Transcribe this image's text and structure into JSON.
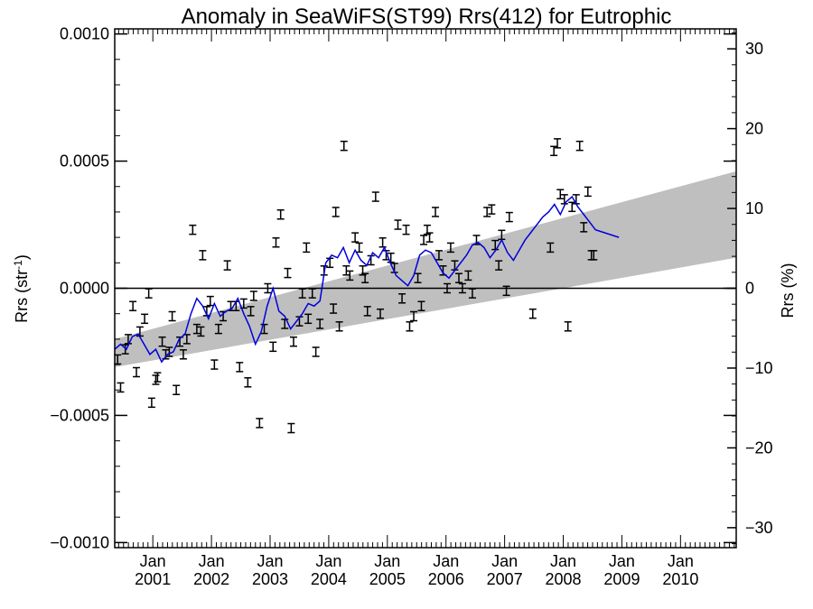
{
  "chart_data": {
    "type": "scatter",
    "title": "Anomaly in SeaWiFS(ST99) Rrs(412) for Eutrophic",
    "ylabel": "Rrs (str",
    "ylabel_superscript": "-1",
    "ylabel_suffix": ")",
    "y2label": "Rrs (%)",
    "ylim": [
      -0.00102,
      0.00102
    ],
    "y2lim": [
      -32.5,
      32.5
    ],
    "xlim": [
      2000.35,
      2010.95
    ],
    "y_ticks": [
      {
        "value": 0.001,
        "label": "0.0010"
      },
      {
        "value": 0.0005,
        "label": "0.0005"
      },
      {
        "value": 0.0,
        "label": "0.0000"
      },
      {
        "value": -0.0005,
        "label": "−0.0005"
      },
      {
        "value": -0.001,
        "label": "−0.0010"
      }
    ],
    "y2_ticks": [
      {
        "value": 30,
        "label": "30"
      },
      {
        "value": 20,
        "label": "20"
      },
      {
        "value": 10,
        "label": "10"
      },
      {
        "value": 0,
        "label": "0"
      },
      {
        "value": -10,
        "label": "−10"
      },
      {
        "value": -20,
        "label": "−20"
      },
      {
        "value": -30,
        "label": "−30"
      }
    ],
    "x_ticks": [
      {
        "value": 2001.0,
        "month": "Jan",
        "year": "2001"
      },
      {
        "value": 2002.0,
        "month": "Jan",
        "year": "2002"
      },
      {
        "value": 2003.0,
        "month": "Jan",
        "year": "2003"
      },
      {
        "value": 2004.0,
        "month": "Jan",
        "year": "2004"
      },
      {
        "value": 2005.0,
        "month": "Jan",
        "year": "2005"
      },
      {
        "value": 2006.0,
        "month": "Jan",
        "year": "2006"
      },
      {
        "value": 2007.0,
        "month": "Jan",
        "year": "2007"
      },
      {
        "value": 2008.0,
        "month": "Jan",
        "year": "2008"
      },
      {
        "value": 2009.0,
        "month": "Jan",
        "year": "2009"
      },
      {
        "value": 2010.0,
        "month": "Jan",
        "year": "2010"
      }
    ],
    "zero_line": true,
    "grid": false,
    "band": {
      "x": [
        2000.35,
        2010.95
      ],
      "upper": [
        -0.0002,
        0.00046
      ],
      "lower": [
        -0.00031,
        0.00012
      ]
    },
    "series": [
      {
        "kind": "points",
        "error_bars": true,
        "points": [
          {
            "x": 2000.4,
            "y": -0.00028
          },
          {
            "x": 2000.45,
            "y": -0.00039
          },
          {
            "x": 2000.53,
            "y": -0.00024
          },
          {
            "x": 2000.58,
            "y": -0.0002
          },
          {
            "x": 2000.66,
            "y": -7e-05
          },
          {
            "x": 2000.72,
            "y": -0.00033
          },
          {
            "x": 2000.78,
            "y": -0.00017
          },
          {
            "x": 2000.86,
            "y": -0.00012
          },
          {
            "x": 2000.93,
            "y": -2e-05
          },
          {
            "x": 2000.98,
            "y": -0.00045
          },
          {
            "x": 2001.05,
            "y": -0.00036
          },
          {
            "x": 2001.08,
            "y": -0.00035
          },
          {
            "x": 2001.16,
            "y": -0.00021
          },
          {
            "x": 2001.22,
            "y": -0.00026
          },
          {
            "x": 2001.28,
            "y": -0.00025
          },
          {
            "x": 2001.33,
            "y": -0.00011
          },
          {
            "x": 2001.4,
            "y": -0.0004
          },
          {
            "x": 2001.46,
            "y": -0.00021
          },
          {
            "x": 2001.52,
            "y": -0.00026
          },
          {
            "x": 2001.58,
            "y": -0.0002
          },
          {
            "x": 2001.68,
            "y": 0.00023
          },
          {
            "x": 2001.75,
            "y": -0.00016
          },
          {
            "x": 2001.82,
            "y": -0.00017
          },
          {
            "x": 2001.85,
            "y": 0.00013
          },
          {
            "x": 2001.92,
            "y": -9e-05
          },
          {
            "x": 2001.98,
            "y": -5e-05
          },
          {
            "x": 2002.05,
            "y": -0.0003
          },
          {
            "x": 2002.12,
            "y": -0.00016
          },
          {
            "x": 2002.2,
            "y": -0.00011
          },
          {
            "x": 2002.27,
            "y": 9e-05
          },
          {
            "x": 2002.33,
            "y": -7e-05
          },
          {
            "x": 2002.42,
            "y": -7e-05
          },
          {
            "x": 2002.48,
            "y": -0.00031
          },
          {
            "x": 2002.55,
            "y": -6e-05
          },
          {
            "x": 2002.62,
            "y": -0.00037
          },
          {
            "x": 2002.67,
            "y": -9e-05
          },
          {
            "x": 2002.72,
            "y": -3e-05
          },
          {
            "x": 2002.82,
            "y": -0.00053
          },
          {
            "x": 2002.9,
            "y": -0.00016
          },
          {
            "x": 2002.96,
            "y": 0.0
          },
          {
            "x": 2003.05,
            "y": -0.00023
          },
          {
            "x": 2003.1,
            "y": 0.00018
          },
          {
            "x": 2003.18,
            "y": 0.00029
          },
          {
            "x": 2003.25,
            "y": -0.00014
          },
          {
            "x": 2003.3,
            "y": 6e-05
          },
          {
            "x": 2003.36,
            "y": -0.00055
          },
          {
            "x": 2003.4,
            "y": -0.00021
          },
          {
            "x": 2003.5,
            "y": -0.00013
          },
          {
            "x": 2003.55,
            "y": -2e-05
          },
          {
            "x": 2003.62,
            "y": 0.00016
          },
          {
            "x": 2003.65,
            "y": -0.00012
          },
          {
            "x": 2003.72,
            "y": -2e-05
          },
          {
            "x": 2003.78,
            "y": -0.00025
          },
          {
            "x": 2003.85,
            "y": -0.00014
          },
          {
            "x": 2003.92,
            "y": 7e-05
          },
          {
            "x": 2004.02,
            "y": 0.0001
          },
          {
            "x": 2004.08,
            "y": -8e-05
          },
          {
            "x": 2004.12,
            "y": 0.0003
          },
          {
            "x": 2004.18,
            "y": -0.00015
          },
          {
            "x": 2004.26,
            "y": 0.00056
          },
          {
            "x": 2004.3,
            "y": 7e-05
          },
          {
            "x": 2004.36,
            "y": 5e-05
          },
          {
            "x": 2004.45,
            "y": 0.0002
          },
          {
            "x": 2004.52,
            "y": 0.00016
          },
          {
            "x": 2004.58,
            "y": 7e-05
          },
          {
            "x": 2004.62,
            "y": 4e-05
          },
          {
            "x": 2004.66,
            "y": -9e-05
          },
          {
            "x": 2004.72,
            "y": 0.00011
          },
          {
            "x": 2004.8,
            "y": 0.00036
          },
          {
            "x": 2004.88,
            "y": -0.0001
          },
          {
            "x": 2004.92,
            "y": 0.00018
          },
          {
            "x": 2004.98,
            "y": 0.00013
          },
          {
            "x": 2005.06,
            "y": 0.00012
          },
          {
            "x": 2005.12,
            "y": 8e-05
          },
          {
            "x": 2005.18,
            "y": 0.00025
          },
          {
            "x": 2005.25,
            "y": -4e-05
          },
          {
            "x": 2005.32,
            "y": 0.00023
          },
          {
            "x": 2005.38,
            "y": -0.00015
          },
          {
            "x": 2005.45,
            "y": -0.00011
          },
          {
            "x": 2005.52,
            "y": 4e-05
          },
          {
            "x": 2005.58,
            "y": -7e-05
          },
          {
            "x": 2005.62,
            "y": 0.00019
          },
          {
            "x": 2005.68,
            "y": 0.00023
          },
          {
            "x": 2005.72,
            "y": 0.0002
          },
          {
            "x": 2005.82,
            "y": 0.0003
          },
          {
            "x": 2005.88,
            "y": 0.00013
          },
          {
            "x": 2005.95,
            "y": 7e-05
          },
          {
            "x": 2006.02,
            "y": 0.0
          },
          {
            "x": 2006.08,
            "y": 0.00016
          },
          {
            "x": 2006.15,
            "y": 9e-05
          },
          {
            "x": 2006.22,
            "y": 4e-05
          },
          {
            "x": 2006.28,
            "y": 0.0
          },
          {
            "x": 2006.38,
            "y": 5e-05
          },
          {
            "x": 2006.45,
            "y": -2e-05
          },
          {
            "x": 2006.52,
            "y": 0.00019
          },
          {
            "x": 2006.7,
            "y": 0.0003
          },
          {
            "x": 2006.78,
            "y": 0.00031
          },
          {
            "x": 2006.84,
            "y": 0.00017
          },
          {
            "x": 2006.9,
            "y": 9e-05
          },
          {
            "x": 2006.95,
            "y": 0.00021
          },
          {
            "x": 2007.03,
            "y": -1e-05
          },
          {
            "x": 2007.08,
            "y": 0.00028
          },
          {
            "x": 2007.48,
            "y": -0.0001
          },
          {
            "x": 2007.78,
            "y": 0.00016
          },
          {
            "x": 2007.84,
            "y": 0.00054
          },
          {
            "x": 2007.9,
            "y": 0.00057
          },
          {
            "x": 2007.95,
            "y": 0.00037
          },
          {
            "x": 2008.02,
            "y": 0.00035
          },
          {
            "x": 2008.08,
            "y": -0.00015
          },
          {
            "x": 2008.15,
            "y": 0.00032
          },
          {
            "x": 2008.22,
            "y": 0.00035
          },
          {
            "x": 2008.28,
            "y": 0.00056
          },
          {
            "x": 2008.35,
            "y": 0.00024
          },
          {
            "x": 2008.42,
            "y": 0.00038
          },
          {
            "x": 2008.48,
            "y": 0.00013
          },
          {
            "x": 2008.52,
            "y": 0.00013
          }
        ]
      },
      {
        "kind": "line",
        "color": "#0000dd",
        "points": [
          {
            "x": 2000.35,
            "y": -0.00024
          },
          {
            "x": 2000.45,
            "y": -0.00022
          },
          {
            "x": 2000.55,
            "y": -0.00024
          },
          {
            "x": 2000.65,
            "y": -0.00019
          },
          {
            "x": 2000.75,
            "y": -0.00018
          },
          {
            "x": 2000.85,
            "y": -0.00022
          },
          {
            "x": 2000.95,
            "y": -0.00026
          },
          {
            "x": 2001.05,
            "y": -0.00024
          },
          {
            "x": 2001.15,
            "y": -0.00029
          },
          {
            "x": 2001.25,
            "y": -0.00026
          },
          {
            "x": 2001.35,
            "y": -0.00025
          },
          {
            "x": 2001.45,
            "y": -0.0002
          },
          {
            "x": 2001.55,
            "y": -0.00018
          },
          {
            "x": 2001.65,
            "y": -0.0001
          },
          {
            "x": 2001.75,
            "y": -4e-05
          },
          {
            "x": 2001.85,
            "y": -7e-05
          },
          {
            "x": 2001.95,
            "y": -0.00012
          },
          {
            "x": 2002.05,
            "y": -6e-05
          },
          {
            "x": 2002.15,
            "y": -0.00011
          },
          {
            "x": 2002.25,
            "y": -9e-05
          },
          {
            "x": 2002.35,
            "y": -8e-05
          },
          {
            "x": 2002.45,
            "y": -4e-05
          },
          {
            "x": 2002.55,
            "y": -0.0001
          },
          {
            "x": 2002.65,
            "y": -0.00015
          },
          {
            "x": 2002.75,
            "y": -0.00022
          },
          {
            "x": 2002.85,
            "y": -0.00017
          },
          {
            "x": 2002.95,
            "y": -7e-05
          },
          {
            "x": 2003.05,
            "y": 0.0
          },
          {
            "x": 2003.15,
            "y": -9e-05
          },
          {
            "x": 2003.25,
            "y": -0.00011
          },
          {
            "x": 2003.35,
            "y": -0.00016
          },
          {
            "x": 2003.45,
            "y": -0.00013
          },
          {
            "x": 2003.55,
            "y": -0.0001
          },
          {
            "x": 2003.65,
            "y": -6e-05
          },
          {
            "x": 2003.75,
            "y": -7e-05
          },
          {
            "x": 2003.85,
            "y": -5e-05
          },
          {
            "x": 2003.95,
            "y": 0.0001
          },
          {
            "x": 2004.05,
            "y": 0.00013
          },
          {
            "x": 2004.15,
            "y": 0.00012
          },
          {
            "x": 2004.25,
            "y": 0.00016
          },
          {
            "x": 2004.35,
            "y": 0.0001
          },
          {
            "x": 2004.45,
            "y": 0.00015
          },
          {
            "x": 2004.55,
            "y": 0.00011
          },
          {
            "x": 2004.65,
            "y": 9e-05
          },
          {
            "x": 2004.75,
            "y": 0.00014
          },
          {
            "x": 2004.85,
            "y": 0.00012
          },
          {
            "x": 2004.95,
            "y": 0.00016
          },
          {
            "x": 2005.05,
            "y": 0.0001
          },
          {
            "x": 2005.15,
            "y": 5e-05
          },
          {
            "x": 2005.25,
            "y": 3e-05
          },
          {
            "x": 2005.35,
            "y": 1e-05
          },
          {
            "x": 2005.45,
            "y": 5e-05
          },
          {
            "x": 2005.55,
            "y": 0.00013
          },
          {
            "x": 2005.65,
            "y": 0.00015
          },
          {
            "x": 2005.75,
            "y": 0.00014
          },
          {
            "x": 2005.85,
            "y": 0.0001
          },
          {
            "x": 2005.95,
            "y": 6e-05
          },
          {
            "x": 2006.05,
            "y": 4e-05
          },
          {
            "x": 2006.15,
            "y": 7e-05
          },
          {
            "x": 2006.25,
            "y": 0.0001
          },
          {
            "x": 2006.35,
            "y": 0.00013
          },
          {
            "x": 2006.45,
            "y": 0.00017
          },
          {
            "x": 2006.55,
            "y": 0.00018
          },
          {
            "x": 2006.65,
            "y": 0.00016
          },
          {
            "x": 2006.75,
            "y": 0.00012
          },
          {
            "x": 2006.85,
            "y": 0.00015
          },
          {
            "x": 2006.95,
            "y": 0.00019
          },
          {
            "x": 2007.05,
            "y": 0.00014
          },
          {
            "x": 2007.15,
            "y": 0.00011
          },
          {
            "x": 2007.25,
            "y": 0.00015
          },
          {
            "x": 2007.35,
            "y": 0.00019
          },
          {
            "x": 2007.45,
            "y": 0.00022
          },
          {
            "x": 2007.55,
            "y": 0.00025
          },
          {
            "x": 2007.65,
            "y": 0.00028
          },
          {
            "x": 2007.75,
            "y": 0.0003
          },
          {
            "x": 2007.85,
            "y": 0.00033
          },
          {
            "x": 2007.95,
            "y": 0.00029
          },
          {
            "x": 2008.05,
            "y": 0.00034
          },
          {
            "x": 2008.15,
            "y": 0.00036
          },
          {
            "x": 2008.25,
            "y": 0.00032
          },
          {
            "x": 2008.35,
            "y": 0.00029
          },
          {
            "x": 2008.45,
            "y": 0.00026
          },
          {
            "x": 2008.55,
            "y": 0.00023
          },
          {
            "x": 2008.95,
            "y": 0.0002
          }
        ]
      }
    ]
  }
}
